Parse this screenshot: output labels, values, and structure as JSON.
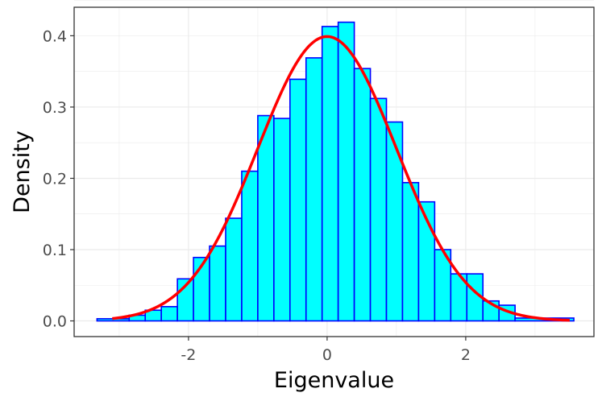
{
  "chart_data": {
    "type": "bar",
    "xlabel": "Eigenvalue",
    "ylabel": "Density",
    "xlim": [
      -3.65,
      3.85
    ],
    "ylim": [
      -0.022,
      0.44
    ],
    "x_ticks": [
      -2,
      0,
      2
    ],
    "x_tick_labels": [
      "-2",
      "0",
      "2"
    ],
    "y_ticks": [
      0.0,
      0.1,
      0.2,
      0.3,
      0.4
    ],
    "y_tick_labels": [
      "0.0",
      "0.1",
      "0.2",
      "0.3",
      "0.4"
    ],
    "grid": true,
    "bin_width": 0.232,
    "bins": [
      {
        "x0": -3.32,
        "x1": -2.856,
        "density": 0.003
      },
      {
        "x0": -2.856,
        "x1": -2.624,
        "density": 0.008
      },
      {
        "x0": -2.624,
        "x1": -2.392,
        "density": 0.015
      },
      {
        "x0": -2.392,
        "x1": -2.16,
        "density": 0.02
      },
      {
        "x0": -2.16,
        "x1": -1.928,
        "density": 0.059
      },
      {
        "x0": -1.928,
        "x1": -1.696,
        "density": 0.089
      },
      {
        "x0": -1.696,
        "x1": -1.464,
        "density": 0.105
      },
      {
        "x0": -1.464,
        "x1": -1.232,
        "density": 0.144
      },
      {
        "x0": -1.232,
        "x1": -1.0,
        "density": 0.21
      },
      {
        "x0": -1.0,
        "x1": -0.768,
        "density": 0.288
      },
      {
        "x0": -0.768,
        "x1": -0.536,
        "density": 0.284
      },
      {
        "x0": -0.536,
        "x1": -0.304,
        "density": 0.339
      },
      {
        "x0": -0.304,
        "x1": -0.072,
        "density": 0.369
      },
      {
        "x0": -0.072,
        "x1": 0.16,
        "density": 0.413
      },
      {
        "x0": 0.16,
        "x1": 0.392,
        "density": 0.419
      },
      {
        "x0": 0.392,
        "x1": 0.624,
        "density": 0.354
      },
      {
        "x0": 0.624,
        "x1": 0.856,
        "density": 0.312
      },
      {
        "x0": 0.856,
        "x1": 1.088,
        "density": 0.279
      },
      {
        "x0": 1.088,
        "x1": 1.32,
        "density": 0.194
      },
      {
        "x0": 1.32,
        "x1": 1.552,
        "density": 0.167
      },
      {
        "x0": 1.552,
        "x1": 1.784,
        "density": 0.1
      },
      {
        "x0": 1.784,
        "x1": 2.016,
        "density": 0.066
      },
      {
        "x0": 2.016,
        "x1": 2.248,
        "density": 0.066
      },
      {
        "x0": 2.248,
        "x1": 2.48,
        "density": 0.028
      },
      {
        "x0": 2.48,
        "x1": 2.712,
        "density": 0.022
      },
      {
        "x0": 2.712,
        "x1": 3.56,
        "density": 0.004
      }
    ],
    "curve": {
      "type": "normal-density",
      "mean": 0,
      "sd": 1,
      "x_range": [
        -3.1,
        3.5
      ]
    },
    "colors": {
      "bar_fill": "#00ffff",
      "bar_stroke": "#0000ff",
      "curve": "#ff0000",
      "grid": "#ebebeb",
      "panel_border": "#333333"
    }
  }
}
